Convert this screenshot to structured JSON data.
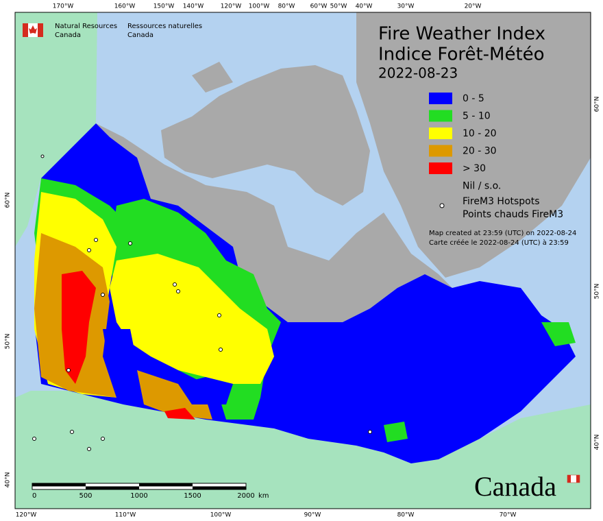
{
  "header": {
    "org_en": "Natural Resources",
    "org_en_2": "Canada",
    "org_fr": "Ressources naturelles",
    "org_fr_2": "Canada"
  },
  "title": {
    "en": "Fire Weather Index",
    "fr": "Indice Forêt-Météo",
    "date": "2022-08-23"
  },
  "legend": [
    {
      "label": "0 - 5",
      "color": "#0000ff"
    },
    {
      "label": "5 - 10",
      "color": "#22dd22"
    },
    {
      "label": "10 - 20",
      "color": "#ffff00"
    },
    {
      "label": "20 - 30",
      "color": "#dd9900"
    },
    {
      "label": "> 30",
      "color": "#ff0000"
    },
    {
      "label": "Nil / s.o.",
      "color": "#a9a9a9"
    }
  ],
  "hotspots": {
    "en": "FireM3 Hotspots",
    "fr": "Points chauds FireM3"
  },
  "notes": [
    "Map created at 23:59 (UTC) on 2022-08-24",
    "Carte créée le 2022-08-24 (UTC) à 23:59"
  ],
  "top_lon_labels": [
    "170°W",
    "160°W",
    "150°W",
    "140°W",
    "120°W",
    "100°W",
    "80°W",
    "60°W",
    "50°W",
    "40°W",
    "30°W",
    "20°W"
  ],
  "bottom_lon_labels": [
    "120°W",
    "110°W",
    "100°W",
    "90°W",
    "80°W",
    "70°W"
  ],
  "left_lat_labels": [
    "60°N",
    "50°N",
    "40°N"
  ],
  "right_lat_labels": [
    "60°N",
    "50°N",
    "40°N"
  ],
  "scale": {
    "labels": [
      "0",
      "500",
      "1000",
      "1500",
      "2000"
    ],
    "unit": "km"
  },
  "wordmark": "Canada"
}
